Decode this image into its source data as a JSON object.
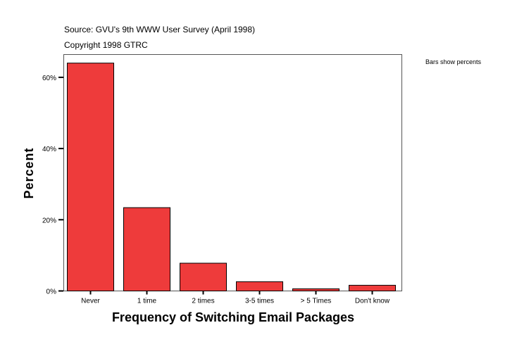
{
  "chart_data": {
    "type": "bar",
    "source": "Source: GVU's 9th WWW User Survey (April 1998)",
    "copyright": "Copyright 1998 GTRC",
    "note": "Bars show percents",
    "xlabel": "Frequency of Switching Email Packages",
    "ylabel": "Percent",
    "categories": [
      "Never",
      "1 time",
      "2 times",
      "3-5 times",
      "> 5  Times",
      "Don't know"
    ],
    "values": [
      64.0,
      23.4,
      7.8,
      2.6,
      0.6,
      1.6
    ],
    "ylim": [
      0,
      66.4
    ],
    "yticks": [
      0,
      20,
      40,
      60
    ],
    "ytick_labels": [
      "0%",
      "20%",
      "40%",
      "60%"
    ],
    "grid": false,
    "bar_color": "#EE3B3B"
  }
}
